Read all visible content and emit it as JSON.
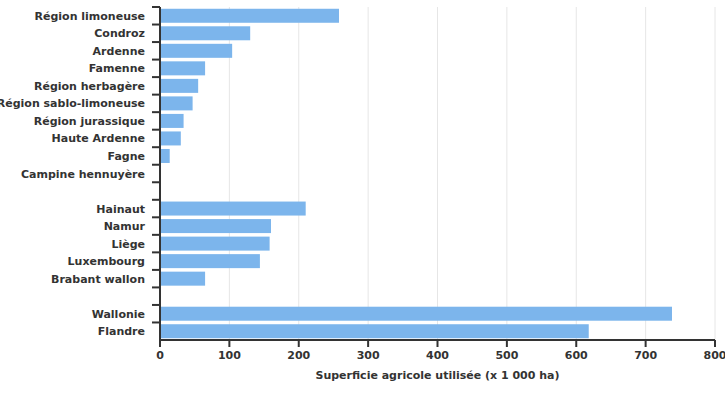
{
  "chart_data": {
    "type": "bar",
    "orientation": "horizontal",
    "x_label": "Superficie agricole utilisée (x 1 000 ha)",
    "categories": [
      "Région limoneuse",
      "Condroz",
      "Ardenne",
      "Famenne",
      "Région herbagère",
      "Région sablo-limoneuse",
      "Région jurassique",
      "Haute Ardenne",
      "Fagne",
      "Campine hennuyère",
      null,
      "Hainaut",
      "Namur",
      "Liège",
      "Luxembourg",
      "Brabant wallon",
      null,
      "Wallonie",
      "Flandre"
    ],
    "values": [
      258,
      130,
      104,
      65,
      55,
      47,
      34,
      30,
      14,
      0.5,
      null,
      210,
      160,
      158,
      144,
      65,
      null,
      738,
      618
    ],
    "color": "#7cb5ec",
    "xlim": [
      0,
      800
    ],
    "xticks": [
      0,
      100,
      200,
      300,
      400,
      500,
      600,
      700,
      800
    ],
    "grid": true
  }
}
